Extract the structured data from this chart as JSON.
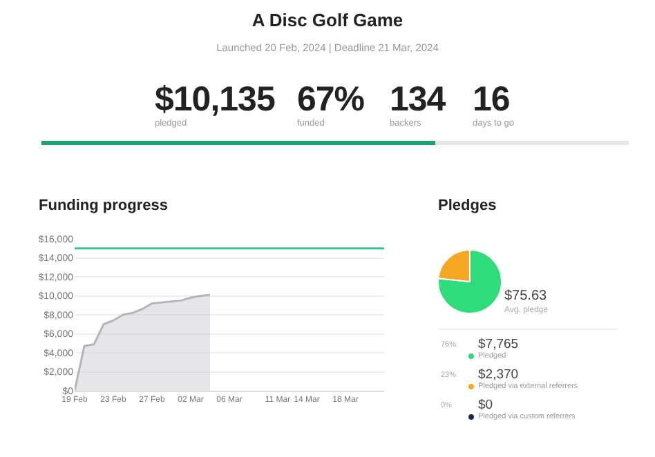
{
  "chart_data": [
    {
      "type": "other",
      "title": "A Disc Golf Game",
      "subtitle": "Launched 20 Feb, 2024 | Deadline 21 Mar, 2024",
      "annotations": [
        "$10,135",
        "pledged",
        "67%",
        "funded",
        "134",
        "backers",
        "16",
        "days to go"
      ],
      "color": "#1f9e7a"
    },
    {
      "type": "area",
      "title": "Funding progress",
      "x": [
        "2024-02-19",
        "2024-02-20",
        "2024-02-21",
        "2024-02-22",
        "2024-02-23",
        "2024-02-24",
        "2024-02-25",
        "2024-02-26",
        "2024-02-27",
        "2024-02-28",
        "2024-02-29",
        "2024-03-01",
        "2024-03-02",
        "2024-03-03",
        "2024-03-04"
      ],
      "series": [
        {
          "color": "#b4b4bc",
          "values": [
            0,
            4700,
            4900,
            7000,
            7400,
            8000,
            8200,
            8600,
            9200,
            9300,
            9400,
            9500,
            9800,
            10000,
            10100
          ]
        }
      ],
      "xlim": [
        "2024-02-19",
        "2024-03-22"
      ],
      "xticks": [
        {
          "value": "2024-02-19",
          "label": "19 Feb"
        },
        {
          "value": "2024-02-23",
          "label": "23 Feb"
        },
        {
          "value": "2024-02-27",
          "label": "27 Feb"
        },
        {
          "value": "2024-03-02",
          "label": "02 Mar"
        },
        {
          "value": "2024-03-06",
          "label": "06 Mar"
        },
        {
          "value": "2024-03-11",
          "label": "11 Mar"
        },
        {
          "value": "2024-03-14",
          "label": "14 Mar"
        },
        {
          "value": "2024-03-18",
          "label": "18 Mar"
        }
      ],
      "ylim": [
        0,
        16000
      ],
      "yticks": [
        {
          "value": 0,
          "label": "$0"
        },
        {
          "value": 2000,
          "label": "$2,000"
        },
        {
          "value": 4000,
          "label": "$4,000"
        },
        {
          "value": 6000,
          "label": "$6,000"
        },
        {
          "value": 8000,
          "label": "$8,000"
        },
        {
          "value": 10000,
          "label": "$10,000"
        },
        {
          "value": 12000,
          "label": "$12,000"
        },
        {
          "value": 14000,
          "label": "$14,000"
        },
        {
          "value": 16000,
          "label": "$16,000"
        }
      ],
      "ref_lines": [
        {
          "axis": "y",
          "value": 15000,
          "color": "#3cbf94"
        }
      ],
      "grid": "y",
      "marker": "none",
      "legend": false
    },
    {
      "type": "pie",
      "title": "Pledges",
      "categories": [
        "Pledged",
        "Pledged via external referrers",
        "Pledged via custom referrers"
      ],
      "values": [
        7765,
        2370,
        0
      ],
      "colors": [
        "#2fdc7a",
        "#f5a623",
        "#1c2a4a"
      ],
      "value_labels": [
        "$7,765",
        "$2,370",
        "$0"
      ],
      "annotations": [
        "$75.63",
        "Avg. pledge",
        "76%",
        "23%",
        "0%"
      ],
      "legend": "bottom"
    }
  ]
}
